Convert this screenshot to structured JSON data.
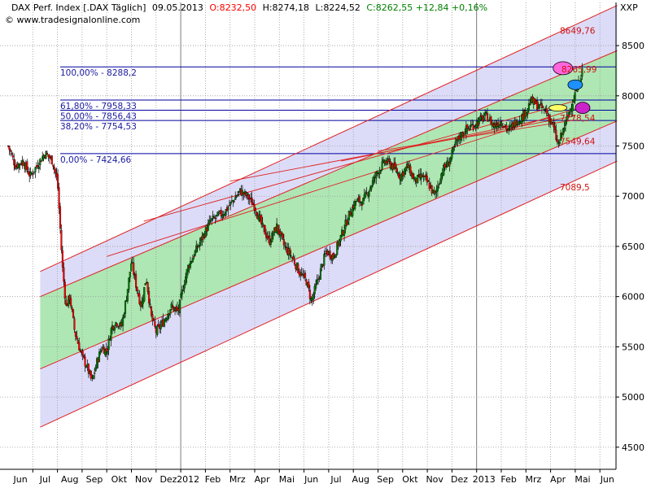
{
  "header": {
    "instrument": "DAX Perf. Index [.DAX  Täglich]",
    "date": "09.05.2013",
    "open": "O:8232,50",
    "high": "H:8274,18",
    "low": "L:8224,52",
    "close": "C:8262,55 +12,84 +0,16%",
    "watermark": "© www.tradesignalonline.com",
    "axis_symbol": "XXP"
  },
  "colors": {
    "up": "#008000",
    "down": "#ff0000",
    "fib": "#0000a0",
    "channel": "#e02020",
    "outer_fill": "#dcdcf8",
    "inner_fill": "#aee6b4",
    "grid": "#9a9a9a"
  },
  "chart_data": {
    "type": "candlestick",
    "yticks": [
      4500,
      5000,
      5500,
      6000,
      6500,
      7000,
      7500,
      8000,
      8500
    ],
    "ytick_labels": [
      "4500",
      "5000",
      "5500",
      "6000",
      "6500",
      "7000",
      "7500",
      "8000",
      "8500"
    ],
    "ylim": [
      4280,
      8930
    ],
    "x_labels": [
      "Jun",
      "Jul",
      "Aug",
      "Sep",
      "Okt",
      "Nov",
      "Dez",
      "2012",
      "Feb",
      "Mrz",
      "Apr",
      "Mai",
      "Jun",
      "Jul",
      "Aug",
      "Sep",
      "Okt",
      "Nov",
      "Dez",
      "2013",
      "Feb",
      "Mrz",
      "Apr",
      "Mai",
      "Jun"
    ],
    "x_positions": [
      0.5,
      1.5,
      2.5,
      3.5,
      4.5,
      5.5,
      6.5,
      7.3,
      8.3,
      9.3,
      10.3,
      11.3,
      12.3,
      13.3,
      14.3,
      15.3,
      16.3,
      17.3,
      18.3,
      19.3,
      20.3,
      21.3,
      22.3,
      23.3,
      24.3
    ],
    "month_lines": [
      1,
      2,
      3,
      4,
      5,
      6,
      7,
      8,
      9,
      10,
      11,
      12,
      13,
      14,
      15,
      16,
      17,
      18,
      19,
      20,
      21,
      22,
      23,
      24
    ],
    "fib_levels": [
      {
        "label": "100,00% - 8288,2",
        "value": 8288.2
      },
      {
        "label": "61,80% - 7958,33",
        "value": 7958.33
      },
      {
        "label": "50,00% - 7856,43",
        "value": 7856.43
      },
      {
        "label": "38,20% - 7754,53",
        "value": 7754.53
      },
      {
        "label": "0,00% - 7424,66",
        "value": 7424.66
      }
    ],
    "channel_labels": [
      {
        "text": "8649,76",
        "value": 8649.76
      },
      {
        "text": "8265,99",
        "value": 8265.99
      },
      {
        "text": "7778,54",
        "value": 7778.54
      },
      {
        "text": "7549,64",
        "value": 7549.64
      },
      {
        "text": "7089,5",
        "value": 7089.5
      }
    ],
    "close_path": [
      [
        0.0,
        7500
      ],
      [
        0.3,
        7300
      ],
      [
        0.6,
        7350
      ],
      [
        0.9,
        7200
      ],
      [
        1.2,
        7320
      ],
      [
        1.5,
        7430
      ],
      [
        1.8,
        7350
      ],
      [
        2.0,
        7150
      ],
      [
        2.2,
        6300
      ],
      [
        2.35,
        5900
      ],
      [
        2.5,
        6000
      ],
      [
        2.7,
        5650
      ],
      [
        3.0,
        5400
      ],
      [
        3.2,
        5300
      ],
      [
        3.4,
        5150
      ],
      [
        3.6,
        5350
      ],
      [
        3.8,
        5500
      ],
      [
        4.0,
        5450
      ],
      [
        4.2,
        5700
      ],
      [
        4.4,
        5750
      ],
      [
        4.6,
        5700
      ],
      [
        4.8,
        6000
      ],
      [
        5.0,
        6350
      ],
      [
        5.2,
        6100
      ],
      [
        5.4,
        5900
      ],
      [
        5.6,
        6200
      ],
      [
        5.8,
        5800
      ],
      [
        6.0,
        5650
      ],
      [
        6.3,
        5750
      ],
      [
        6.6,
        5900
      ],
      [
        6.9,
        5850
      ],
      [
        7.1,
        6100
      ],
      [
        7.3,
        6300
      ],
      [
        7.6,
        6450
      ],
      [
        7.9,
        6600
      ],
      [
        8.2,
        6750
      ],
      [
        8.5,
        6800
      ],
      [
        8.8,
        6850
      ],
      [
        9.1,
        6950
      ],
      [
        9.4,
        7050
      ],
      [
        9.7,
        7000
      ],
      [
        10.0,
        6900
      ],
      [
        10.3,
        6700
      ],
      [
        10.6,
        6550
      ],
      [
        10.9,
        6700
      ],
      [
        11.2,
        6500
      ],
      [
        11.5,
        6400
      ],
      [
        11.8,
        6250
      ],
      [
        12.1,
        6150
      ],
      [
        12.3,
        5950
      ],
      [
        12.6,
        6200
      ],
      [
        12.9,
        6450
      ],
      [
        13.2,
        6400
      ],
      [
        13.5,
        6600
      ],
      [
        13.8,
        6800
      ],
      [
        14.1,
        6950
      ],
      [
        14.4,
        6950
      ],
      [
        14.7,
        7100
      ],
      [
        15.0,
        7250
      ],
      [
        15.3,
        7350
      ],
      [
        15.6,
        7300
      ],
      [
        15.9,
        7200
      ],
      [
        16.2,
        7300
      ],
      [
        16.5,
        7150
      ],
      [
        16.8,
        7200
      ],
      [
        17.1,
        7100
      ],
      [
        17.3,
        7000
      ],
      [
        17.6,
        7250
      ],
      [
        17.9,
        7350
      ],
      [
        18.2,
        7550
      ],
      [
        18.5,
        7650
      ],
      [
        18.8,
        7700
      ],
      [
        19.1,
        7750
      ],
      [
        19.4,
        7800
      ],
      [
        19.7,
        7700
      ],
      [
        20.0,
        7750
      ],
      [
        20.3,
        7650
      ],
      [
        20.6,
        7750
      ],
      [
        20.9,
        7800
      ],
      [
        21.2,
        7950
      ],
      [
        21.5,
        7900
      ],
      [
        21.8,
        7850
      ],
      [
        22.1,
        7700
      ],
      [
        22.3,
        7500
      ],
      [
        22.5,
        7650
      ],
      [
        22.7,
        7800
      ],
      [
        22.9,
        7950
      ],
      [
        23.1,
        8100
      ],
      [
        23.3,
        8262
      ]
    ]
  }
}
